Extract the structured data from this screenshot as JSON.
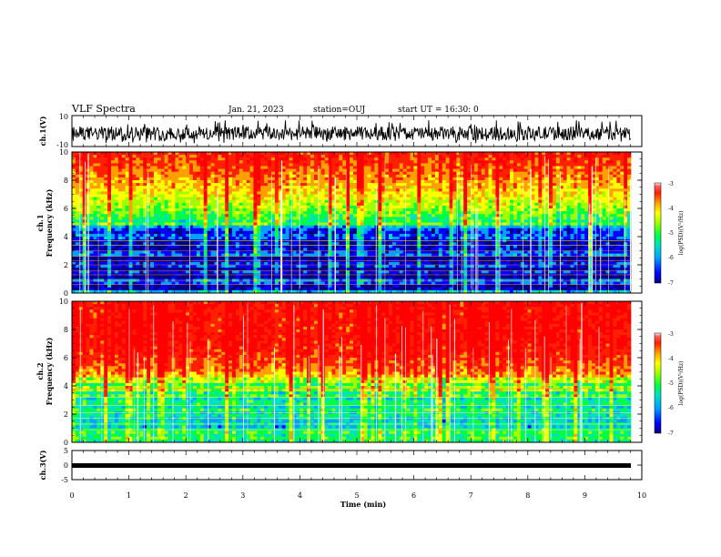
{
  "header": {
    "title": "VLF Spectra",
    "date": "Jan. 21, 2023",
    "station": "station=OUJ",
    "start": "start UT =  16:30: 0"
  },
  "colors": {
    "spectrogram_scale": [
      "#000080",
      "#0000ff",
      "#00a0ff",
      "#00e0c0",
      "#00ff40",
      "#a0ff00",
      "#ffff00",
      "#ffa000",
      "#ff2000",
      "#ff0000",
      "#ffffff"
    ],
    "trace": "#000000"
  },
  "chart_data": [
    {
      "type": "line",
      "panel": "ch1_waveform",
      "ylabel": "ch.1(V)",
      "ylim": [
        -10,
        10
      ],
      "yticks": [
        "10",
        "-10"
      ],
      "xlim": [
        0,
        10
      ],
      "description_values": {
        "mean": -3,
        "amplitude_band": [
          -6,
          3
        ]
      }
    },
    {
      "type": "heatmap",
      "panel": "ch1_spectrogram",
      "ylabel": "ch.1\nFrequency (kHz)",
      "ylabel_lines": [
        "ch.1",
        "Frequency (kHz)"
      ],
      "ylim": [
        0,
        10
      ],
      "yticks": [
        "0",
        "2",
        "4",
        "6",
        "8",
        "10"
      ],
      "xlim": [
        0,
        10
      ],
      "colorbar": {
        "label": "log(PSD)(V²/Hz)",
        "range": [
          -7,
          -3
        ],
        "ticks": [
          "-3",
          "-4",
          "-5",
          "-6",
          "-7"
        ]
      },
      "band_profile": [
        {
          "f": 0,
          "v": -6.3
        },
        {
          "f": 1,
          "v": -6.4
        },
        {
          "f": 2,
          "v": -6.6
        },
        {
          "f": 3,
          "v": -6.5
        },
        {
          "f": 4,
          "v": -6.2
        },
        {
          "f": 5,
          "v": -5.4
        },
        {
          "f": 6,
          "v": -4.8
        },
        {
          "f": 7,
          "v": -4.4
        },
        {
          "f": 8,
          "v": -4.0
        },
        {
          "f": 9,
          "v": -3.7
        },
        {
          "f": 10,
          "v": -3.5
        }
      ]
    },
    {
      "type": "heatmap",
      "panel": "ch2_spectrogram",
      "ylabel": "ch.2\nFrequency (kHz)",
      "ylabel_lines": [
        "ch.2",
        "Frequency (kHz)"
      ],
      "ylim": [
        0,
        10
      ],
      "yticks": [
        "0",
        "2",
        "4",
        "6",
        "8",
        "10"
      ],
      "xlim": [
        0,
        10
      ],
      "colorbar": {
        "label": "log(PSD)(V²/Hz)",
        "range": [
          -7,
          -3
        ],
        "ticks": [
          "-3",
          "-4",
          "-5",
          "-6",
          "-7"
        ]
      },
      "band_profile": [
        {
          "f": 0,
          "v": -5.2
        },
        {
          "f": 1,
          "v": -5.6
        },
        {
          "f": 2,
          "v": -5.7
        },
        {
          "f": 3,
          "v": -5.6
        },
        {
          "f": 4,
          "v": -5.0
        },
        {
          "f": 5,
          "v": -3.9
        },
        {
          "f": 6,
          "v": -3.5
        },
        {
          "f": 7,
          "v": -3.3
        },
        {
          "f": 8,
          "v": -3.3
        },
        {
          "f": 9,
          "v": -3.3
        },
        {
          "f": 10,
          "v": -3.3
        }
      ]
    },
    {
      "type": "line",
      "panel": "ch3_waveform",
      "ylabel": "ch.3(V)",
      "ylim": [
        -5,
        5
      ],
      "yticks": [
        "5",
        "0",
        "-5"
      ],
      "xlim": [
        0,
        10
      ],
      "xlabel": "Time (min)",
      "xticks": [
        "0",
        "1",
        "2",
        "3",
        "4",
        "5",
        "6",
        "7",
        "8",
        "9",
        "10"
      ],
      "description_values": {
        "mean": -0.5,
        "amplitude_band": [
          -0.9,
          -0.1
        ]
      }
    }
  ]
}
